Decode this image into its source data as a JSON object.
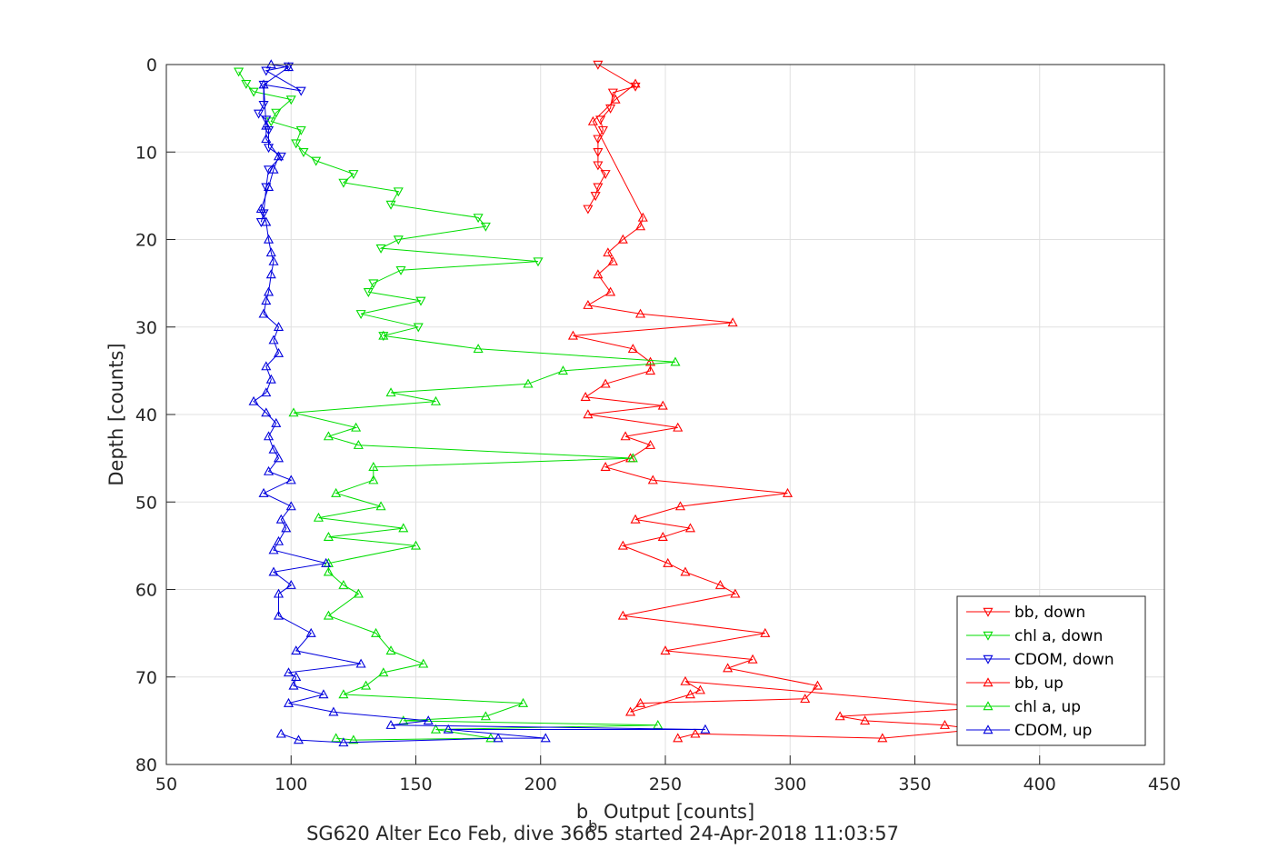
{
  "chart_data": {
    "type": "line",
    "title": "SG620 Alter Eco Feb, dive 3665 started 24-Apr-2018 11:03:57",
    "xlabel": {
      "main": "b",
      "sub": "b",
      "rest": " Output [counts]"
    },
    "ylabel": "Depth [counts]",
    "xlim": [
      50,
      450
    ],
    "ylim": [
      0,
      80
    ],
    "y_reversed": true,
    "grid": true,
    "legend_position": "bottom-right",
    "x_ticks": [
      50,
      100,
      150,
      200,
      250,
      300,
      350,
      400,
      450
    ],
    "y_ticks": [
      0,
      10,
      20,
      30,
      40,
      50,
      60,
      70,
      80
    ],
    "series": [
      {
        "name": "bb, down",
        "color": "#ff0000",
        "marker": "triangle-down",
        "points": [
          [
            223,
            0
          ],
          [
            238,
            2.5
          ],
          [
            229,
            3.2
          ],
          [
            228,
            5
          ],
          [
            224,
            6.3
          ],
          [
            225,
            7.5
          ],
          [
            223,
            8.5
          ],
          [
            223,
            10
          ],
          [
            223,
            11.5
          ],
          [
            226,
            12.5
          ],
          [
            223,
            14
          ],
          [
            222,
            15
          ],
          [
            219,
            16.5
          ]
        ]
      },
      {
        "name": "chl a, down",
        "color": "#00dd00",
        "marker": "triangle-down",
        "points": [
          [
            79,
            0.8
          ],
          [
            82,
            2.2
          ],
          [
            85,
            3.1
          ],
          [
            100,
            4
          ],
          [
            94,
            5.5
          ],
          [
            92,
            6.5
          ],
          [
            104,
            7.5
          ],
          [
            102,
            9
          ],
          [
            105,
            10
          ],
          [
            110,
            11
          ],
          [
            125,
            12.5
          ],
          [
            121,
            13.5
          ],
          [
            143,
            14.5
          ],
          [
            140,
            16
          ],
          [
            175,
            17.5
          ],
          [
            178,
            18.5
          ],
          [
            143,
            20
          ],
          [
            136,
            21
          ],
          [
            199,
            22.5
          ],
          [
            144,
            23.5
          ],
          [
            133,
            25
          ],
          [
            131,
            26
          ],
          [
            152,
            27
          ],
          [
            128,
            28.5
          ],
          [
            151,
            30
          ],
          [
            137,
            31
          ]
        ]
      },
      {
        "name": "CDOM, down",
        "color": "#0000dd",
        "marker": "triangle-down",
        "points": [
          [
            99,
            0.2
          ],
          [
            90,
            0.7
          ],
          [
            104,
            3
          ],
          [
            89,
            2.3
          ],
          [
            89,
            4.6
          ],
          [
            87,
            5.6
          ],
          [
            90,
            6.3
          ],
          [
            91,
            7.5
          ],
          [
            91,
            9.5
          ],
          [
            96,
            10.5
          ],
          [
            91,
            12
          ],
          [
            90,
            14
          ],
          [
            89,
            17
          ],
          [
            88,
            18
          ]
        ]
      },
      {
        "name": "bb, up",
        "color": "#ff0000",
        "marker": "triangle-up",
        "points": [
          [
            238,
            2.2
          ],
          [
            230,
            4
          ],
          [
            221,
            6.5
          ],
          [
            241,
            17.5
          ],
          [
            240,
            18.5
          ],
          [
            233,
            20
          ],
          [
            227,
            21.5
          ],
          [
            229,
            22.5
          ],
          [
            223,
            24
          ],
          [
            228,
            26
          ],
          [
            219,
            27.5
          ],
          [
            240,
            28.5
          ],
          [
            277,
            29.5
          ],
          [
            213,
            31
          ],
          [
            237,
            32.5
          ],
          [
            244,
            34
          ],
          [
            244,
            35
          ],
          [
            226,
            36.5
          ],
          [
            218,
            38
          ],
          [
            249,
            39
          ],
          [
            219,
            40
          ],
          [
            255,
            41.5
          ],
          [
            234,
            42.5
          ],
          [
            244,
            43.5
          ],
          [
            236,
            45
          ],
          [
            226,
            46
          ],
          [
            245,
            47.5
          ],
          [
            299,
            49
          ],
          [
            256,
            50.5
          ],
          [
            238,
            52
          ],
          [
            260,
            53
          ],
          [
            249,
            54
          ],
          [
            233,
            55
          ],
          [
            251,
            57
          ],
          [
            258,
            58
          ],
          [
            272,
            59.5
          ],
          [
            278,
            60.5
          ],
          [
            233,
            63
          ],
          [
            290,
            65
          ],
          [
            250,
            67
          ],
          [
            285,
            68
          ],
          [
            275,
            69
          ],
          [
            311,
            71
          ],
          [
            306,
            72.5
          ],
          [
            240,
            73
          ],
          [
            236,
            74
          ],
          [
            260,
            72
          ],
          [
            264,
            71.5
          ],
          [
            258,
            70.5
          ],
          [
            380,
            73.5
          ],
          [
            320,
            74.5
          ],
          [
            330,
            75
          ],
          [
            362,
            75.5
          ],
          [
            375,
            76
          ],
          [
            337,
            77
          ],
          [
            262,
            76.5
          ],
          [
            255,
            77
          ]
        ]
      },
      {
        "name": "chl a, up",
        "color": "#00dd00",
        "marker": "triangle-up",
        "points": [
          [
            137,
            31
          ],
          [
            175,
            32.5
          ],
          [
            254,
            34
          ],
          [
            209,
            35
          ],
          [
            195,
            36.5
          ],
          [
            140,
            37.5
          ],
          [
            158,
            38.5
          ],
          [
            101,
            39.8
          ],
          [
            126,
            41.5
          ],
          [
            115,
            42.5
          ],
          [
            127,
            43.5
          ],
          [
            237,
            45
          ],
          [
            133,
            46
          ],
          [
            133,
            47.5
          ],
          [
            118,
            49
          ],
          [
            136,
            50.5
          ],
          [
            111,
            51.8
          ],
          [
            145,
            53
          ],
          [
            115,
            54
          ],
          [
            150,
            55
          ],
          [
            115,
            57
          ],
          [
            115,
            58
          ],
          [
            121,
            59.5
          ],
          [
            127,
            60.5
          ],
          [
            115,
            63
          ],
          [
            134,
            65
          ],
          [
            140,
            67
          ],
          [
            153,
            68.5
          ],
          [
            137,
            69.5
          ],
          [
            130,
            71
          ],
          [
            121,
            72
          ],
          [
            193,
            73
          ],
          [
            178,
            74.5
          ],
          [
            145,
            75
          ],
          [
            247,
            75.5
          ],
          [
            158,
            76
          ],
          [
            180,
            77
          ],
          [
            125,
            77.2
          ],
          [
            118,
            77
          ]
        ]
      },
      {
        "name": "CDOM, up",
        "color": "#0000dd",
        "marker": "triangle-up",
        "points": [
          [
            92,
            0
          ],
          [
            99,
            0.3
          ],
          [
            89,
            2.3
          ],
          [
            90,
            7
          ],
          [
            90,
            8.5
          ],
          [
            95,
            10.5
          ],
          [
            93,
            12
          ],
          [
            91,
            14
          ],
          [
            88,
            16.5
          ],
          [
            90,
            18
          ],
          [
            91,
            20
          ],
          [
            92,
            21.5
          ],
          [
            93,
            22.5
          ],
          [
            92,
            24
          ],
          [
            91,
            26
          ],
          [
            90,
            27
          ],
          [
            89,
            28.5
          ],
          [
            95,
            30
          ],
          [
            93,
            31.5
          ],
          [
            95,
            33
          ],
          [
            90,
            34.5
          ],
          [
            92,
            36
          ],
          [
            90,
            37.5
          ],
          [
            85,
            38.5
          ],
          [
            90,
            39.8
          ],
          [
            94,
            41
          ],
          [
            91,
            42.5
          ],
          [
            93,
            44
          ],
          [
            95,
            45
          ],
          [
            91,
            46.5
          ],
          [
            100,
            47.5
          ],
          [
            89,
            49
          ],
          [
            100,
            50.5
          ],
          [
            96,
            52
          ],
          [
            98,
            53
          ],
          [
            95,
            54.5
          ],
          [
            93,
            55.5
          ],
          [
            114,
            57
          ],
          [
            93,
            58
          ],
          [
            100,
            59.5
          ],
          [
            95,
            60.5
          ],
          [
            95,
            63
          ],
          [
            108,
            65
          ],
          [
            102,
            67
          ],
          [
            128,
            68.5
          ],
          [
            99,
            69.5
          ],
          [
            102,
            70
          ],
          [
            101,
            71
          ],
          [
            113,
            72
          ],
          [
            99,
            73
          ],
          [
            117,
            74
          ],
          [
            155,
            75
          ],
          [
            140,
            75.5
          ],
          [
            266,
            76
          ],
          [
            163,
            76
          ],
          [
            202,
            77
          ],
          [
            183,
            77
          ],
          [
            121,
            77.5
          ],
          [
            103,
            77.2
          ],
          [
            96,
            76.5
          ]
        ]
      }
    ]
  }
}
